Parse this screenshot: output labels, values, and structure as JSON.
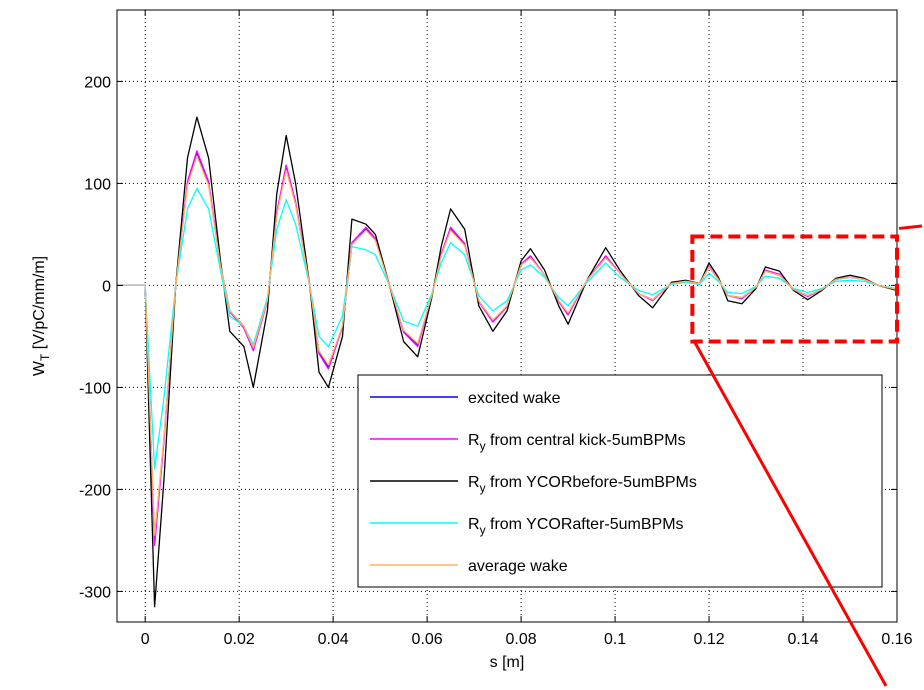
{
  "chart_data": {
    "type": "line",
    "xlabel": "s [m]",
    "ylabel": "W",
    "ylabel_sub": "T",
    "ylabel_unit": " [V/pC/mm/m]",
    "xlim": [
      -0.006,
      0.16
    ],
    "ylim": [
      -330,
      270
    ],
    "grid": true,
    "legend_position": "lower-right",
    "x_ticks": [
      {
        "v": 0,
        "label": "0"
      },
      {
        "v": 0.02,
        "label": "0.02"
      },
      {
        "v": 0.04,
        "label": "0.04"
      },
      {
        "v": 0.06,
        "label": "0.06"
      },
      {
        "v": 0.08,
        "label": "0.08"
      },
      {
        "v": 0.1,
        "label": "0.1"
      },
      {
        "v": 0.12,
        "label": "0.12"
      },
      {
        "v": 0.14,
        "label": "0.14"
      },
      {
        "v": 0.16,
        "label": "0.16"
      }
    ],
    "y_ticks": [
      {
        "v": -300,
        "label": "-300"
      },
      {
        "v": -200,
        "label": "-200"
      },
      {
        "v": -100,
        "label": "-100"
      },
      {
        "v": 0,
        "label": "0"
      },
      {
        "v": 100,
        "label": "100"
      },
      {
        "v": 200,
        "label": "200"
      }
    ],
    "x": [
      -0.006,
      0,
      0.002,
      0.004,
      0.0065,
      0.009,
      0.011,
      0.0135,
      0.016,
      0.018,
      0.021,
      0.023,
      0.026,
      0.028,
      0.03,
      0.032,
      0.035,
      0.037,
      0.039,
      0.042,
      0.044,
      0.047,
      0.049,
      0.052,
      0.055,
      0.058,
      0.061,
      0.063,
      0.065,
      0.068,
      0.071,
      0.074,
      0.077,
      0.08,
      0.082,
      0.085,
      0.088,
      0.09,
      0.094,
      0.098,
      0.101,
      0.105,
      0.108,
      0.112,
      0.115,
      0.118,
      0.12,
      0.122,
      0.124,
      0.127,
      0.13,
      0.132,
      0.135,
      0.138,
      0.141,
      0.144,
      0.147,
      0.15,
      0.153,
      0.156,
      0.16
    ],
    "series": [
      {
        "name": "excited wake",
        "name_sub": "",
        "name_rest": "",
        "color": "#0000ff",
        "values": [
          0,
          0,
          -250,
          -150,
          0,
          100,
          130,
          100,
          20,
          -25,
          -40,
          -62,
          -15,
          70,
          115,
          80,
          0,
          -65,
          -80,
          -40,
          40,
          55,
          45,
          0,
          -45,
          -58,
          -10,
          30,
          55,
          40,
          -15,
          -35,
          -20,
          20,
          28,
          10,
          -15,
          -28,
          5,
          28,
          12,
          -8,
          -14,
          2,
          4,
          2,
          18,
          6,
          -10,
          -12,
          -2,
          14,
          10,
          -4,
          -10,
          -4,
          6,
          8,
          6,
          0,
          -4
        ]
      },
      {
        "name": "R",
        "name_sub": "y",
        "name_rest": " from central kick-5umBPMs",
        "color": "#ff00ff",
        "values": [
          0,
          0,
          -255,
          -152,
          0,
          102,
          132,
          102,
          21,
          -26,
          -42,
          -64,
          -16,
          72,
          118,
          82,
          0,
          -67,
          -82,
          -41,
          42,
          57,
          46,
          0,
          -46,
          -60,
          -10,
          31,
          57,
          41,
          -16,
          -36,
          -21,
          21,
          29,
          10,
          -16,
          -29,
          5,
          29,
          12,
          -8,
          -15,
          2,
          4,
          2,
          19,
          6,
          -10,
          -13,
          -2,
          15,
          11,
          -4,
          -11,
          -4,
          6,
          8,
          6,
          0,
          -4
        ]
      },
      {
        "name": "R",
        "name_sub": "y",
        "name_rest": " from YCORbefore-5umBPMs",
        "color": "#000000",
        "values": [
          0,
          0,
          -315,
          -190,
          0,
          125,
          165,
          125,
          25,
          -45,
          -60,
          -100,
          -25,
          90,
          147,
          100,
          0,
          -85,
          -100,
          -50,
          65,
          60,
          50,
          0,
          -55,
          -70,
          -12,
          38,
          75,
          55,
          -20,
          -45,
          -25,
          24,
          36,
          15,
          -20,
          -38,
          5,
          37,
          15,
          -10,
          -22,
          3,
          5,
          2,
          22,
          8,
          -15,
          -18,
          -3,
          18,
          14,
          -5,
          -14,
          -5,
          7,
          10,
          7,
          0,
          -5
        ]
      },
      {
        "name": "R",
        "name_sub": "y",
        "name_rest": " from YCORafter-5umBPMs",
        "color": "#00ffff",
        "values": [
          0,
          0,
          -180,
          -110,
          0,
          75,
          95,
          75,
          15,
          -30,
          -40,
          -58,
          -12,
          55,
          84,
          60,
          0,
          -50,
          -60,
          -30,
          38,
          35,
          30,
          0,
          -35,
          -40,
          -8,
          22,
          42,
          30,
          -10,
          -25,
          -15,
          15,
          20,
          8,
          -12,
          -20,
          3,
          22,
          8,
          -5,
          -9,
          1,
          3,
          1,
          12,
          4,
          -7,
          -8,
          -1,
          9,
          7,
          -3,
          -7,
          -3,
          4,
          5,
          4,
          0,
          -3
        ]
      },
      {
        "name": "average wake",
        "name_sub": "",
        "name_rest": "",
        "color": "#ffb366",
        "values": [
          0,
          0,
          -245,
          -148,
          0,
          98,
          127,
          98,
          20,
          -25,
          -40,
          -61,
          -15,
          69,
          113,
          79,
          0,
          -64,
          -78,
          -40,
          40,
          54,
          44,
          0,
          -44,
          -57,
          -10,
          29,
          54,
          39,
          -15,
          -34,
          -20,
          20,
          27,
          10,
          -15,
          -27,
          5,
          27,
          12,
          -8,
          -14,
          2,
          4,
          2,
          18,
          6,
          -10,
          -12,
          -2,
          14,
          10,
          -4,
          -10,
          -4,
          6,
          8,
          6,
          0,
          -4
        ]
      }
    ],
    "annotations": [
      {
        "type": "dashed-rectangle",
        "color": "#ff0000",
        "x0": 0.119,
        "x1": 0.16,
        "y0": -55,
        "y1": 48
      },
      {
        "type": "arrow-line",
        "color": "#ff0000",
        "note": "connector lines from the rectangle toward the right edge of the figure"
      }
    ]
  }
}
